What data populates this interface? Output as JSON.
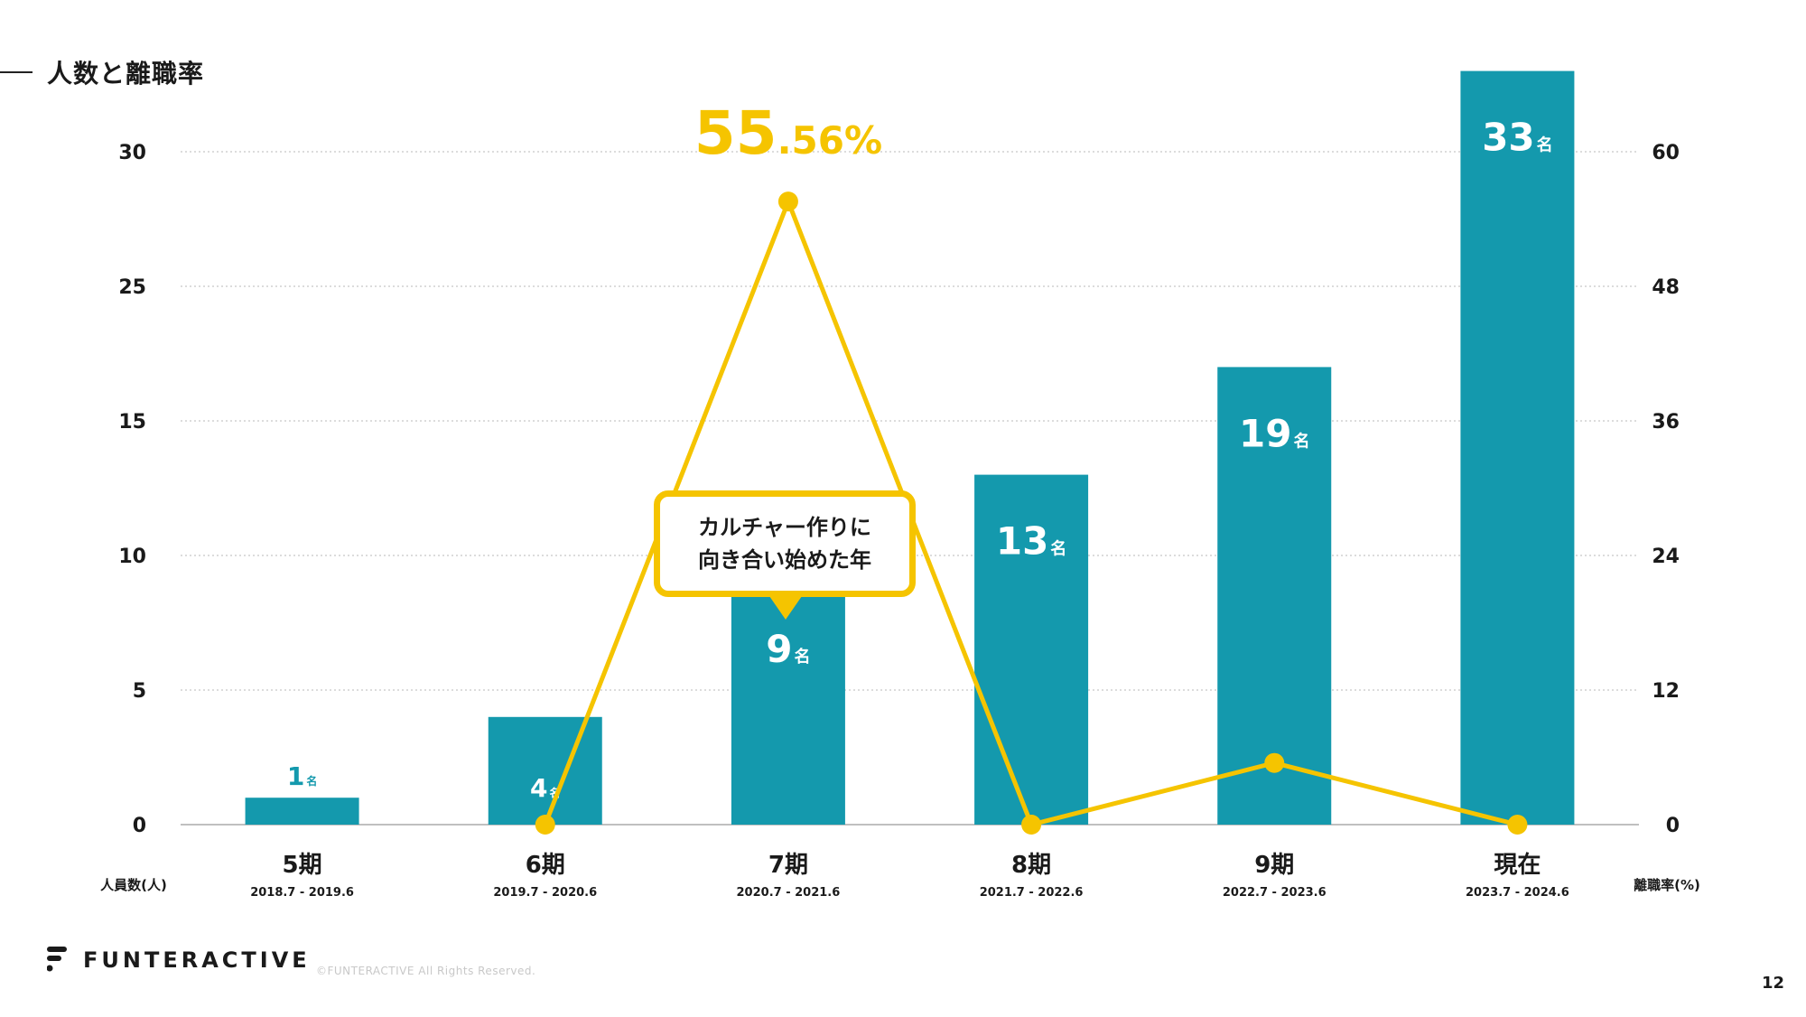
{
  "heading": {
    "title": "人数と離職率"
  },
  "chart_data": {
    "type": "bar",
    "categories": [
      "5期",
      "6期",
      "7期",
      "8期",
      "9期",
      "現在"
    ],
    "periods": [
      "2018.7 - 2019.6",
      "2019.7 - 2020.6",
      "2020.7 - 2021.6",
      "2021.7 - 2022.6",
      "2022.7 - 2023.6",
      "2023.7 - 2024.6"
    ],
    "series": [
      {
        "name": "人員数(人)",
        "type": "bar",
        "axis": "left",
        "values": [
          1,
          4,
          9,
          13,
          19,
          33
        ]
      },
      {
        "name": "離職率(%)",
        "type": "line",
        "axis": "right",
        "values": [
          null,
          0,
          55.56,
          0,
          5.5,
          0
        ]
      }
    ],
    "bar_labels": [
      {
        "num": "1",
        "unit": "名"
      },
      {
        "num": "4",
        "unit": "名"
      },
      {
        "num": "9",
        "unit": "名"
      },
      {
        "num": "13",
        "unit": "名"
      },
      {
        "num": "19",
        "unit": "名"
      },
      {
        "num": "33",
        "unit": "名"
      }
    ],
    "left_axis": {
      "label": "人員数(人)",
      "ticks": [
        0,
        5,
        10,
        15,
        25,
        30
      ]
    },
    "right_axis": {
      "label": "離職率(%)",
      "ticks": [
        0,
        12,
        24,
        36,
        48,
        60
      ]
    },
    "peak_annotation": {
      "big": "55",
      "small": ".56%"
    },
    "callout": {
      "line1": "カルチャー作りに",
      "line2": "向き合い始めた年"
    },
    "colors": {
      "bar": "#1499ad",
      "bar_label_light": "#ffffff",
      "bar_label_dark": "#1499ad",
      "line": "#f5c400",
      "grid": "#b8b8b8"
    },
    "grid": true
  },
  "footer": {
    "brand": "FUNTERACTIVE",
    "copyright": "©FUNTERACTIVE All Rights Reserved.",
    "page_number": "12"
  }
}
